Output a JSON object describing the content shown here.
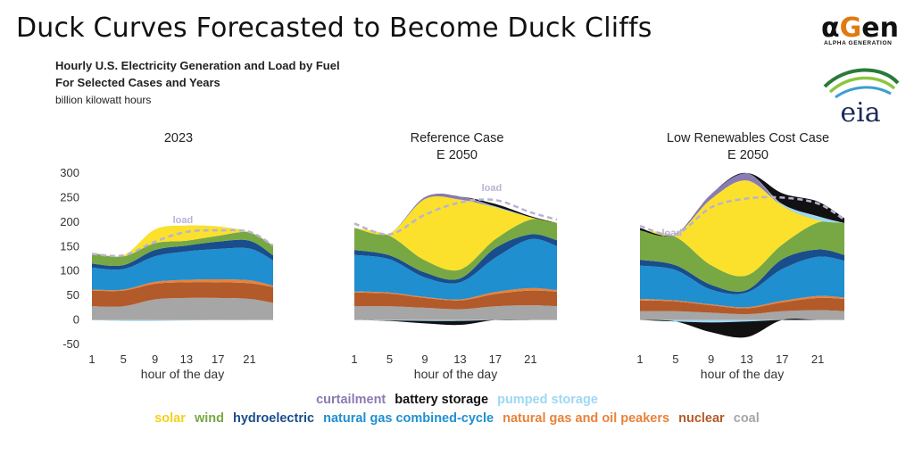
{
  "slide_title": "Duck Curves Forecasted to Become Duck Cliffs",
  "subtitle": {
    "line1": "Hourly U.S. Electricity Generation and Load by Fuel",
    "line2": "For Selected Cases and Years",
    "unit": "billion kilowatt hours"
  },
  "logos": {
    "agen_main_a": "α",
    "agen_main_g": "G",
    "agen_main_rest": "en",
    "agen_tagline": "ALPHA GENERATION",
    "eia_text": "eia"
  },
  "colors": {
    "coal": "#a6a6a6",
    "nuclear": "#b35a2a",
    "peakers": "#e8823a",
    "ngcc": "#1f8fd0",
    "hydro": "#1a4d8c",
    "wind": "#78a843",
    "solar": "#fbe12b",
    "pumped": "#9ed8f4",
    "battery": "#111111",
    "curtailment": "#8a7bb3",
    "load": "#b9b2d6"
  },
  "legend": {
    "row1": [
      {
        "key": "curtailment",
        "label": "curtailment",
        "color": "#8a7bb3"
      },
      {
        "key": "battery",
        "label": "battery storage",
        "color": "#111111"
      },
      {
        "key": "pumped",
        "label": "pumped storage",
        "color": "#9ed8f4"
      }
    ],
    "row2": [
      {
        "key": "solar",
        "label": "solar",
        "color": "#fbe12b"
      },
      {
        "key": "wind",
        "label": "wind",
        "color": "#78a843"
      },
      {
        "key": "hydro",
        "label": "hydroelectric",
        "color": "#1a4d8c"
      },
      {
        "key": "ngcc",
        "label": "natural gas combined-cycle",
        "color": "#1f8fd0"
      },
      {
        "key": "peakers",
        "label": "natural gas and oil peakers",
        "color": "#e8823a"
      },
      {
        "key": "nuclear",
        "label": "nuclear",
        "color": "#b35a2a"
      },
      {
        "key": "coal",
        "label": "coal",
        "color": "#a6a6a6"
      }
    ]
  },
  "chart_data": [
    {
      "type": "area",
      "title": "2023",
      "subtitle": "",
      "xlabel": "hour of the day",
      "ylabel": "",
      "ylim": [
        -50,
        300
      ],
      "yticks": [
        -50,
        0,
        50,
        100,
        150,
        200,
        250,
        300
      ],
      "xticks": [
        1,
        5,
        9,
        13,
        17,
        21
      ],
      "x": [
        1,
        5,
        9,
        13,
        17,
        21,
        24
      ],
      "load_label": "load",
      "load": [
        135,
        132,
        160,
        180,
        183,
        180,
        152
      ],
      "series": [
        {
          "key": "coal",
          "values": [
            28,
            28,
            42,
            45,
            45,
            43,
            35
          ]
        },
        {
          "key": "nuclear",
          "values": [
            32,
            32,
            32,
            32,
            32,
            32,
            32
          ]
        },
        {
          "key": "peakers",
          "values": [
            2,
            2,
            4,
            5,
            6,
            6,
            3
          ]
        },
        {
          "key": "ngcc",
          "values": [
            45,
            42,
            52,
            58,
            62,
            65,
            52
          ]
        },
        {
          "key": "hydro",
          "values": [
            8,
            8,
            13,
            12,
            15,
            16,
            10
          ]
        },
        {
          "key": "wind",
          "values": [
            22,
            18,
            14,
            10,
            12,
            17,
            20
          ]
        },
        {
          "key": "solar",
          "values": [
            0,
            2,
            28,
            31,
            19,
            0,
            0
          ]
        },
        {
          "key": "pumped",
          "values": [
            0,
            -2,
            -2,
            -1,
            0,
            1,
            0
          ]
        },
        {
          "key": "battery",
          "values": [
            0,
            0,
            0,
            0,
            0,
            0,
            0
          ]
        },
        {
          "key": "curtailment",
          "values": [
            0,
            0,
            0,
            0,
            0,
            0,
            0
          ]
        }
      ]
    },
    {
      "type": "area",
      "title": "Reference Case",
      "subtitle": "E 2050",
      "xlabel": "hour of the day",
      "ylabel": "",
      "ylim": [
        -50,
        300
      ],
      "yticks": [
        -50,
        0,
        50,
        100,
        150,
        200,
        250,
        300
      ],
      "xticks": [
        1,
        5,
        9,
        13,
        17,
        21
      ],
      "x": [
        1,
        5,
        9,
        13,
        17,
        21,
        24
      ],
      "load_label": "load",
      "load": [
        197,
        175,
        215,
        240,
        245,
        220,
        205
      ],
      "series": [
        {
          "key": "coal",
          "values": [
            28,
            28,
            25,
            22,
            28,
            30,
            28
          ]
        },
        {
          "key": "nuclear",
          "values": [
            28,
            26,
            20,
            18,
            25,
            30,
            30
          ]
        },
        {
          "key": "peakers",
          "values": [
            2,
            2,
            2,
            2,
            4,
            5,
            3
          ]
        },
        {
          "key": "ngcc",
          "values": [
            75,
            68,
            40,
            35,
            70,
            100,
            90
          ]
        },
        {
          "key": "hydro",
          "values": [
            10,
            8,
            10,
            8,
            20,
            10,
            12
          ]
        },
        {
          "key": "wind",
          "values": [
            45,
            40,
            25,
            18,
            18,
            30,
            35
          ]
        },
        {
          "key": "solar",
          "values": [
            0,
            5,
            125,
            143,
            65,
            5,
            0
          ]
        },
        {
          "key": "pumped",
          "values": [
            0,
            -1,
            -2,
            -2,
            2,
            0,
            0
          ]
        },
        {
          "key": "battery",
          "values": [
            0,
            -1,
            -5,
            -8,
            5,
            2,
            0
          ]
        },
        {
          "key": "curtailment",
          "values": [
            0,
            0,
            4,
            6,
            0,
            0,
            0
          ]
        }
      ]
    },
    {
      "type": "area",
      "title": "Low Renewables Cost Case",
      "subtitle": "E 2050",
      "xlabel": "hour of the day",
      "ylabel": "",
      "ylim": [
        -50,
        300
      ],
      "yticks": [
        -50,
        0,
        50,
        100,
        150,
        200,
        250,
        300
      ],
      "xticks": [
        1,
        5,
        9,
        13,
        17,
        21
      ],
      "x": [
        1,
        5,
        9,
        13,
        17,
        21,
        24
      ],
      "load_label": "load",
      "load": [
        192,
        175,
        230,
        248,
        250,
        238,
        205
      ],
      "series": [
        {
          "key": "coal",
          "values": [
            18,
            18,
            15,
            12,
            18,
            20,
            18
          ]
        },
        {
          "key": "nuclear",
          "values": [
            22,
            20,
            15,
            12,
            18,
            25,
            25
          ]
        },
        {
          "key": "peakers",
          "values": [
            3,
            2,
            2,
            2,
            3,
            4,
            3
          ]
        },
        {
          "key": "ngcc",
          "values": [
            68,
            62,
            30,
            30,
            65,
            80,
            75
          ]
        },
        {
          "key": "hydro",
          "values": [
            12,
            10,
            10,
            5,
            20,
            15,
            12
          ]
        },
        {
          "key": "wind",
          "values": [
            60,
            58,
            40,
            30,
            30,
            55,
            65
          ]
        },
        {
          "key": "solar",
          "values": [
            0,
            5,
            135,
            194,
            80,
            5,
            0
          ]
        },
        {
          "key": "pumped",
          "values": [
            0,
            -3,
            -5,
            -3,
            3,
            8,
            0
          ]
        },
        {
          "key": "battery",
          "values": [
            5,
            0,
            -20,
            -32,
            22,
            30,
            10
          ]
        },
        {
          "key": "curtailment",
          "values": [
            0,
            0,
            10,
            15,
            0,
            0,
            0
          ]
        }
      ]
    }
  ]
}
